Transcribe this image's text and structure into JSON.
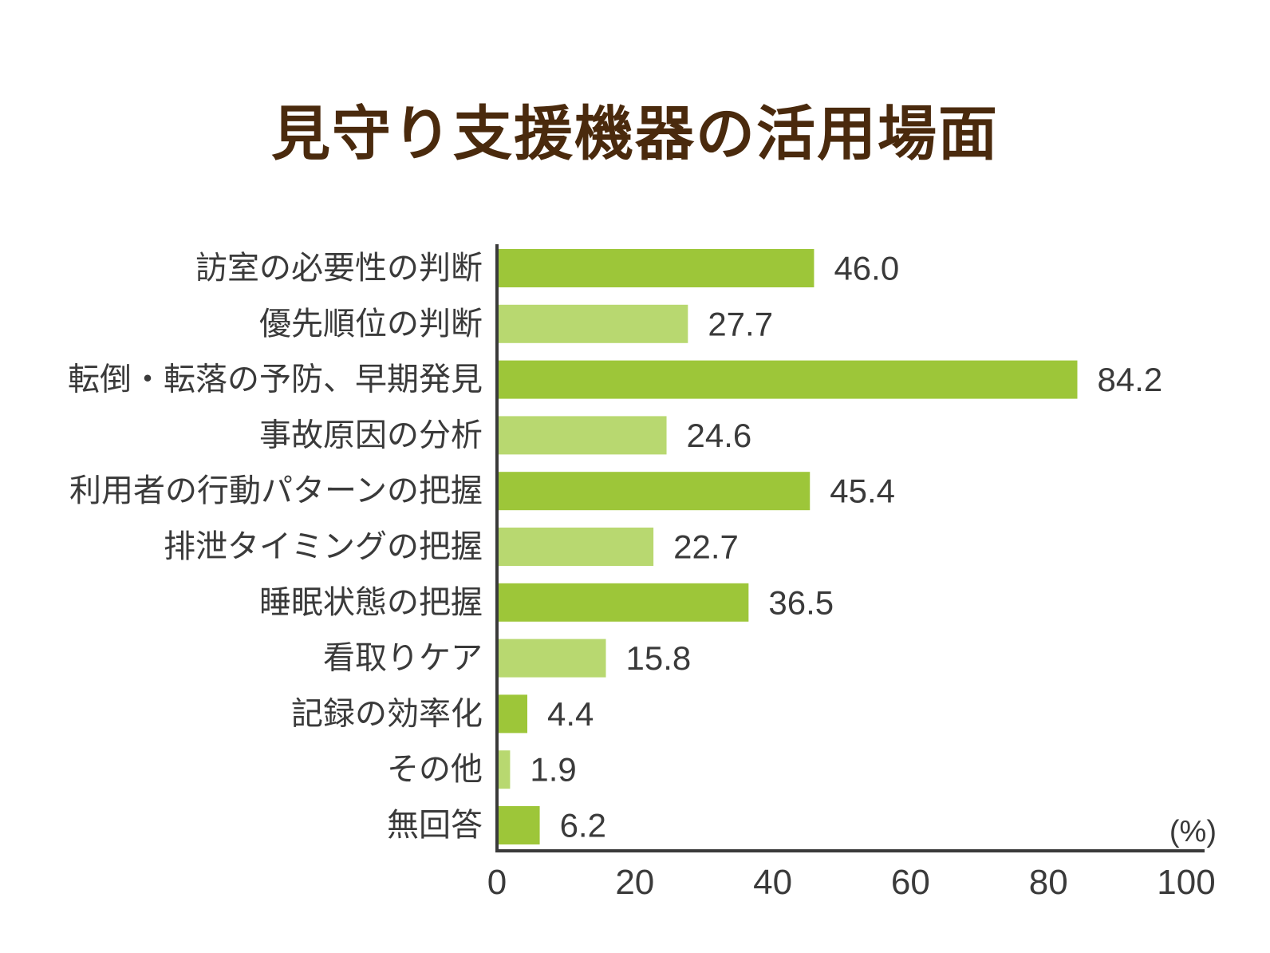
{
  "chart_data": {
    "type": "bar",
    "orientation": "horizontal",
    "title": "見守り支援機器の活用場面",
    "unit": "(%)",
    "categories": [
      "訪室の必要性の判断",
      "優先順位の判断",
      "転倒・転落の予防、早期発見",
      "事故原因の分析",
      "利用者の行動パターンの把握",
      "排泄タイミングの把握",
      "睡眠状態の把握",
      "看取りケア",
      "記録の効率化",
      "その他",
      "無回答"
    ],
    "values": [
      46.0,
      27.7,
      84.2,
      24.6,
      45.4,
      22.7,
      36.5,
      15.8,
      4.4,
      1.9,
      6.2
    ],
    "value_labels": [
      "46.0",
      "27.7",
      "84.2",
      "24.6",
      "45.4",
      "22.7",
      "36.5",
      "15.8",
      "4.4",
      "1.9",
      "6.2"
    ],
    "xlim": [
      0,
      100
    ],
    "xticks": [
      "0",
      "20",
      "40",
      "60",
      "80",
      "100"
    ],
    "grid": false,
    "colors": {
      "bar_dark": "#9dc639",
      "bar_light": "#b8d870",
      "title": "#4a2a0d",
      "axis": "#3a3a3a",
      "text": "#3a3a3a"
    }
  }
}
